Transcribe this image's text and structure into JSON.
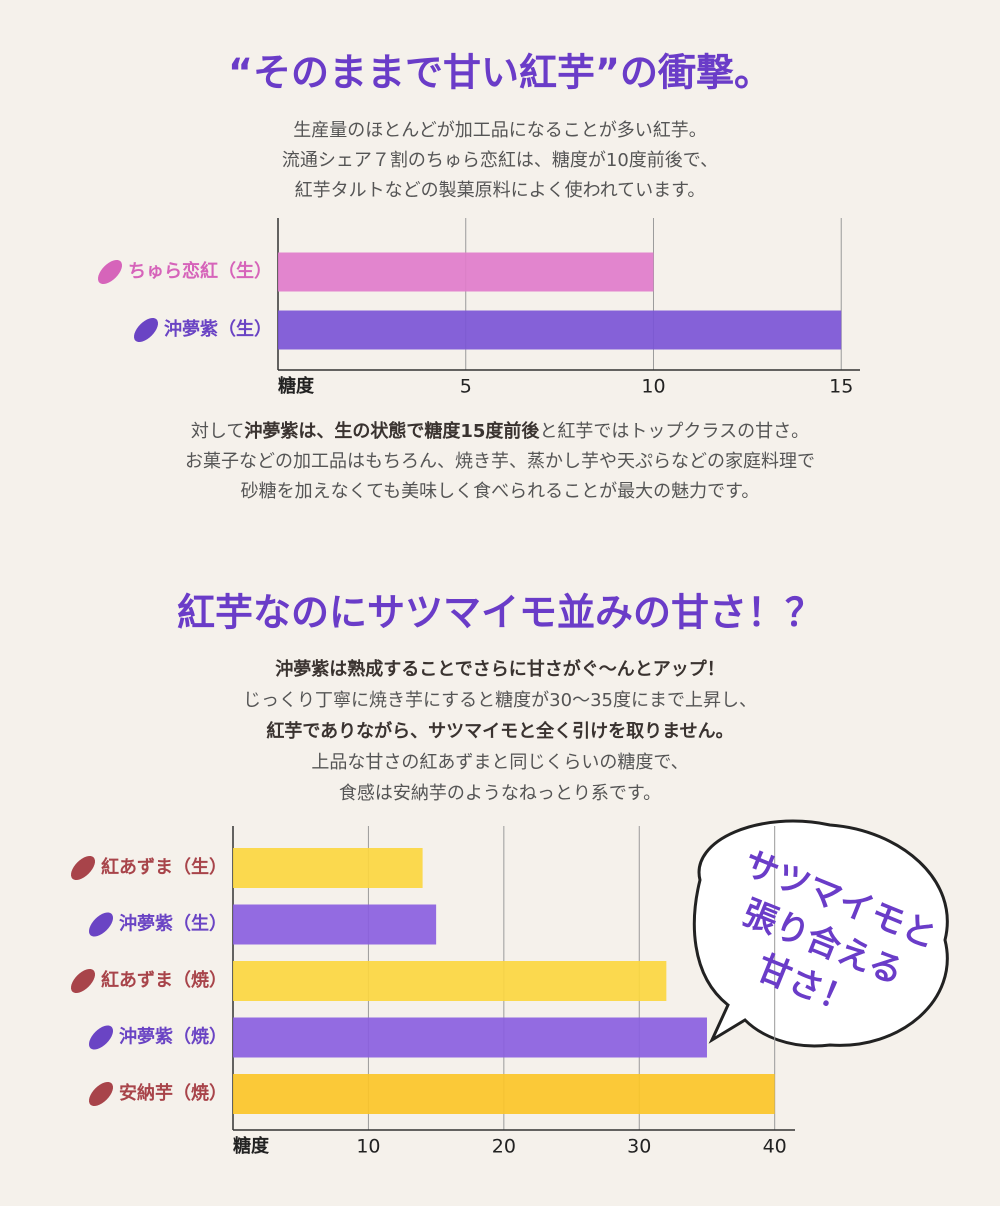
{
  "sections": [
    {
      "title": "“そのままで甘い紅芋”の衝撃。",
      "intro": [
        "生産量のほとんどが加工品になることが多い紅芋。",
        "流通シェア７割のちゅら恋紅は、糖度が10度前後で、",
        "紅芋タルトなどの製菓原料によく使われています。"
      ],
      "outro": [
        [
          {
            "text": "対して",
            "bold": false
          },
          {
            "text": "沖夢紫は、生の状態で糖度15度前後",
            "bold": true
          },
          {
            "text": "と紅芋ではトップクラスの甘さ。",
            "bold": false
          }
        ],
        "お菓子などの加工品はもちろん、焼き芋、蒸かし芋や天ぷらなどの家庭料理で",
        "砂糖を加えなくても美味しく食べられることが最大の魅力です。"
      ]
    },
    {
      "title": "紅芋なのにサツマイモ並みの甘さ！？",
      "intro": [
        [
          {
            "text": "沖夢紫は熟成することでさらに甘さがぐ〜んとアップ！",
            "bold": true
          }
        ],
        "じっくり丁寧に焼き芋にすると糖度が30〜35度にまで上昇し、",
        [
          {
            "text": "紅芋でありながら、サツマイモと全く引けを取りません。",
            "bold": true
          }
        ],
        "上品な甘さの紅あずまと同じくらいの糖度で、",
        "食感は安納芋のようなねっとり系です。"
      ]
    }
  ],
  "chart_data": [
    {
      "type": "bar",
      "orientation": "horizontal",
      "x_label": "糖度",
      "categories": [
        "ちゅら恋紅（生）",
        "沖夢紫（生）"
      ],
      "values": [
        10,
        15
      ],
      "colors": [
        "#e07ccb",
        "#7b55d6"
      ],
      "label_colors": [
        "#d664ba",
        "#6a44c4"
      ],
      "xlim": [
        0,
        15.5
      ],
      "xticks": [
        5,
        10,
        15
      ],
      "grid": true
    },
    {
      "type": "bar",
      "orientation": "horizontal",
      "x_label": "糖度",
      "categories": [
        "紅あずま（生）",
        "沖夢紫（生）",
        "紅あずま（焼）",
        "沖夢紫（焼）",
        "安納芋（焼）"
      ],
      "values": [
        14,
        15,
        32,
        35,
        40
      ],
      "colors": [
        "#fbd740",
        "#8a5fdf",
        "#fbd740",
        "#8a5fdf",
        "#fbc528"
      ],
      "label_colors": [
        "#a8444a",
        "#6a44c4",
        "#a8444a",
        "#6a44c4",
        "#a8444a"
      ],
      "xlim": [
        0,
        41.5
      ],
      "xticks": [
        10,
        20,
        30,
        40
      ],
      "grid": true
    }
  ],
  "callout": {
    "lines": [
      "サツマイモと",
      "張り合える",
      "甘さ！"
    ]
  }
}
